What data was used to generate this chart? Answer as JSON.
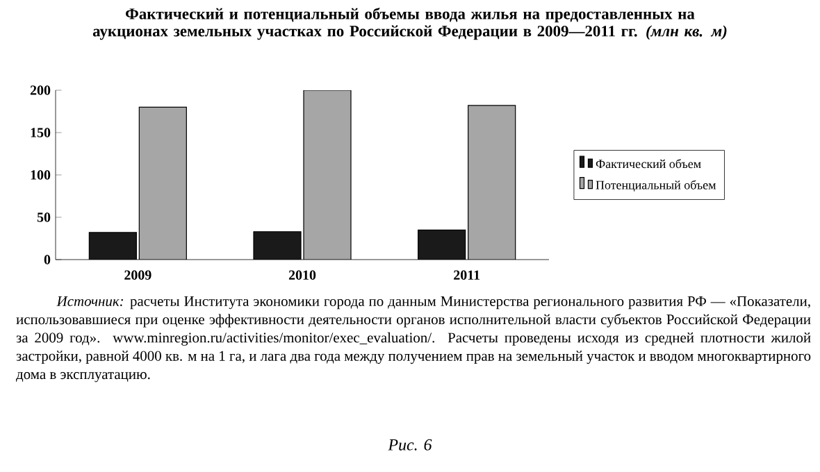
{
  "chart_data": {
    "type": "bar",
    "title": "Фактический и потенциальный объемы ввода жилья на предоставленных на аукционах земельных участках по Российской Федерации в 2009—2011 гг. *(млн кв. м)*",
    "categories": [
      "2009",
      "2010",
      "2011"
    ],
    "series": [
      {
        "name": "Фактический объем",
        "color": "#1a1a1a",
        "values": [
          32,
          33,
          35
        ]
      },
      {
        "name": "Потенциальный объем",
        "color": "#a6a6a6",
        "values": [
          180,
          200,
          182
        ]
      }
    ],
    "ylim": [
      0,
      200
    ],
    "yticks": [
      0,
      50,
      100,
      150,
      200
    ],
    "grid": false,
    "legend": "right",
    "annotations": [
      "*Источник:* расчеты Института экономики города по данным Министерства регионального развития РФ — «Показатели, использовавшиеся при оценке эффективности деятельности органов исполнительной власти субъектов Российской Федерации за 2009 год». www.minregion.ru/activities/monitor/exec_evaluation/. Расчеты проведены исходя из средней плотности жилой застройки, равной 4000 кв. м на 1 га, и лага два года между получением прав на земельный участок и вводом многоквартирного дома в эксплуатацию.",
      "*Рис. 6*"
    ]
  }
}
